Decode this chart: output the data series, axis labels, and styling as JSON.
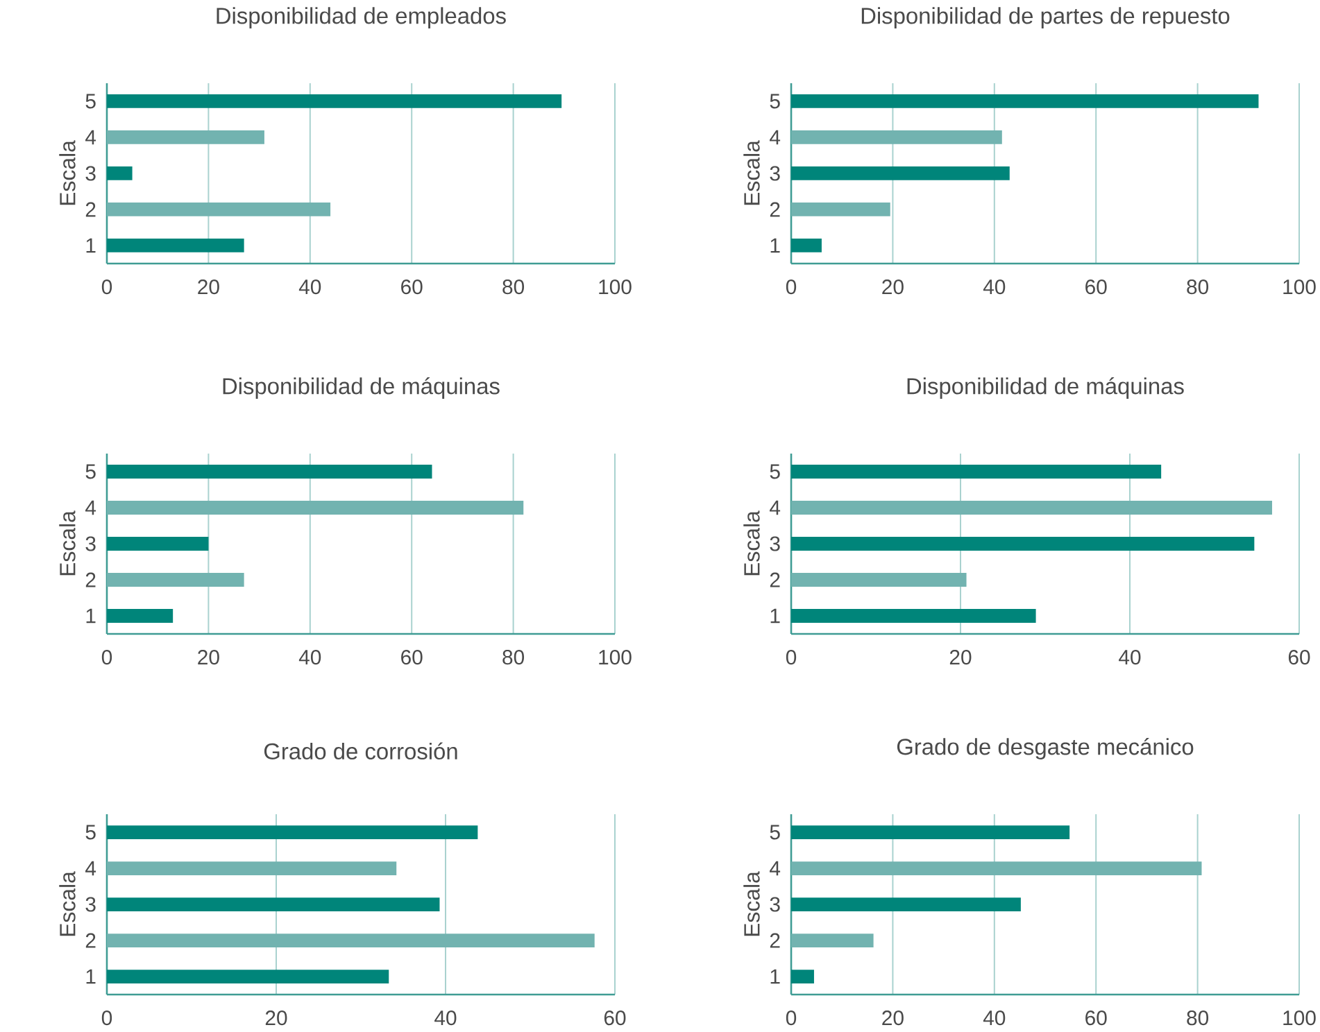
{
  "chart_data": [
    {
      "type": "bar",
      "orientation": "horizontal",
      "title": "Disponibilidad de empleados",
      "ylabel": "Escala",
      "categories": [
        "5",
        "4",
        "3",
        "2",
        "1"
      ],
      "values": [
        89.5,
        31,
        5,
        44,
        27
      ],
      "colors": [
        "#00857a",
        "#72b3b0",
        "#00857a",
        "#72b3b0",
        "#00857a"
      ],
      "xlim": [
        0,
        100
      ],
      "xticks": [
        0,
        20,
        40,
        60,
        80,
        100
      ],
      "grid": "x"
    },
    {
      "type": "bar",
      "orientation": "horizontal",
      "title": "Disponibilidad de partes de repuesto",
      "ylabel": "Escala",
      "categories": [
        "5",
        "4",
        "3",
        "2",
        "1"
      ],
      "values": [
        92,
        41.5,
        43,
        19.5,
        6
      ],
      "colors": [
        "#00857a",
        "#72b3b0",
        "#00857a",
        "#72b3b0",
        "#00857a"
      ],
      "xlim": [
        0,
        100
      ],
      "xticks": [
        0,
        20,
        40,
        60,
        80,
        100
      ],
      "grid": "x"
    },
    {
      "type": "bar",
      "orientation": "horizontal",
      "title": "Disponibilidad de máquinas",
      "ylabel": "Escala",
      "categories": [
        "5",
        "4",
        "3",
        "2",
        "1"
      ],
      "values": [
        64,
        82,
        20,
        27,
        13
      ],
      "colors": [
        "#00857a",
        "#72b3b0",
        "#00857a",
        "#72b3b0",
        "#00857a"
      ],
      "xlim": [
        0,
        100
      ],
      "xticks": [
        0,
        20,
        40,
        60,
        80,
        100
      ],
      "grid": "x"
    },
    {
      "type": "bar",
      "orientation": "horizontal",
      "title": "Disponibilidad de máquinas",
      "ylabel": "Escala",
      "categories": [
        "5",
        "4",
        "3",
        "2",
        "1"
      ],
      "values": [
        43.7,
        56.8,
        54.7,
        20.7,
        28.9
      ],
      "colors": [
        "#00857a",
        "#72b3b0",
        "#00857a",
        "#72b3b0",
        "#00857a"
      ],
      "xlim": [
        0,
        60
      ],
      "xticks": [
        0,
        20,
        40,
        60
      ],
      "grid": "x"
    },
    {
      "type": "bar",
      "orientation": "horizontal",
      "title": "Grado de corrosión",
      "ylabel": "Escala",
      "categories": [
        "5",
        "4",
        "3",
        "2",
        "1"
      ],
      "values": [
        43.8,
        34.2,
        39.3,
        57.6,
        33.3
      ],
      "colors": [
        "#00857a",
        "#72b3b0",
        "#00857a",
        "#72b3b0",
        "#00857a"
      ],
      "xlim": [
        0,
        60
      ],
      "xticks": [
        0,
        20,
        40,
        60
      ],
      "grid": "x"
    },
    {
      "type": "bar",
      "orientation": "horizontal",
      "title": "Grado de desgaste mecánico",
      "ylabel": "Escala",
      "categories": [
        "5",
        "4",
        "3",
        "2",
        "1"
      ],
      "values": [
        54.8,
        80.8,
        45.2,
        16.2,
        4.5
      ],
      "colors": [
        "#00857a",
        "#72b3b0",
        "#00857a",
        "#72b3b0",
        "#00857a"
      ],
      "xlim": [
        0,
        100
      ],
      "xticks": [
        0,
        20,
        40,
        60,
        80,
        100
      ],
      "grid": "x"
    }
  ]
}
